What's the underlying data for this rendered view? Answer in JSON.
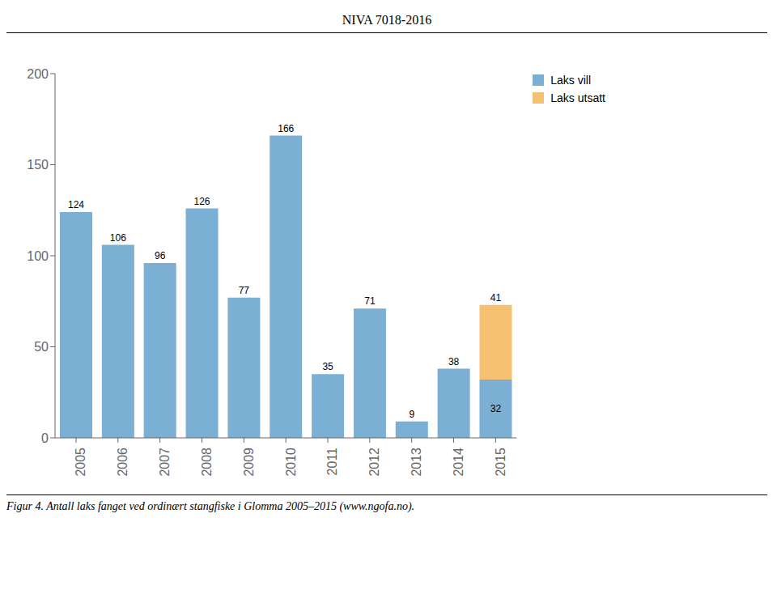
{
  "chart_data": {
    "type": "bar",
    "title": "NIVA 7018-2016",
    "annotations": [
      "Figur 4. Antall laks fanget ved ordinært stangfiske i Glomma 2005–2015 (www.ngofa.no)."
    ],
    "categories": [
      "2005",
      "2006",
      "2007",
      "2008",
      "2009",
      "2010",
      "2011",
      "2012",
      "2013",
      "2014",
      "2015"
    ],
    "series": [
      {
        "name": "Laks vill",
        "color": "#7BAFD4",
        "values": [
          124,
          106,
          96,
          126,
          77,
          166,
          35,
          71,
          9,
          38,
          32
        ]
      },
      {
        "name": "Laks utsatt",
        "color": "#F5C070",
        "values": [
          0,
          0,
          0,
          0,
          0,
          0,
          0,
          0,
          0,
          0,
          41
        ]
      }
    ],
    "stacked": true,
    "data_labels": true,
    "legend": "right",
    "grid": false,
    "ylim": [
      0,
      200
    ],
    "yticks": [
      0,
      50,
      100,
      150,
      200
    ]
  }
}
